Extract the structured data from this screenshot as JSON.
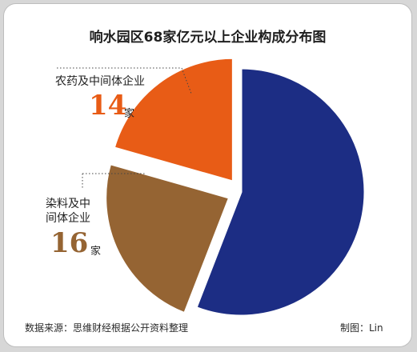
{
  "chart_data": {
    "type": "pie",
    "title": "响水园区68家亿元以上企业构成分布图",
    "total": 68,
    "unit": "家",
    "slices": [
      {
        "label": "",
        "value": 38,
        "color": "#1c2d84",
        "exploded": false
      },
      {
        "label": "染料及中间体企业",
        "value": 16,
        "color": "#956433",
        "exploded": true
      },
      {
        "label": "农药及中间体企业",
        "value": 14,
        "color": "#e85c16",
        "exploded": true
      }
    ],
    "annotations": [
      {
        "text": "农药及中间体企业",
        "value": "14",
        "unit": "家",
        "color": "#e85c16"
      },
      {
        "lines": [
          "染料及中",
          "间体企业"
        ],
        "value": "16",
        "unit": "家",
        "color": "#956433"
      }
    ]
  },
  "footer": {
    "source": "数据来源：思维财经根据公开资料整理",
    "author": "制图：Lin"
  }
}
